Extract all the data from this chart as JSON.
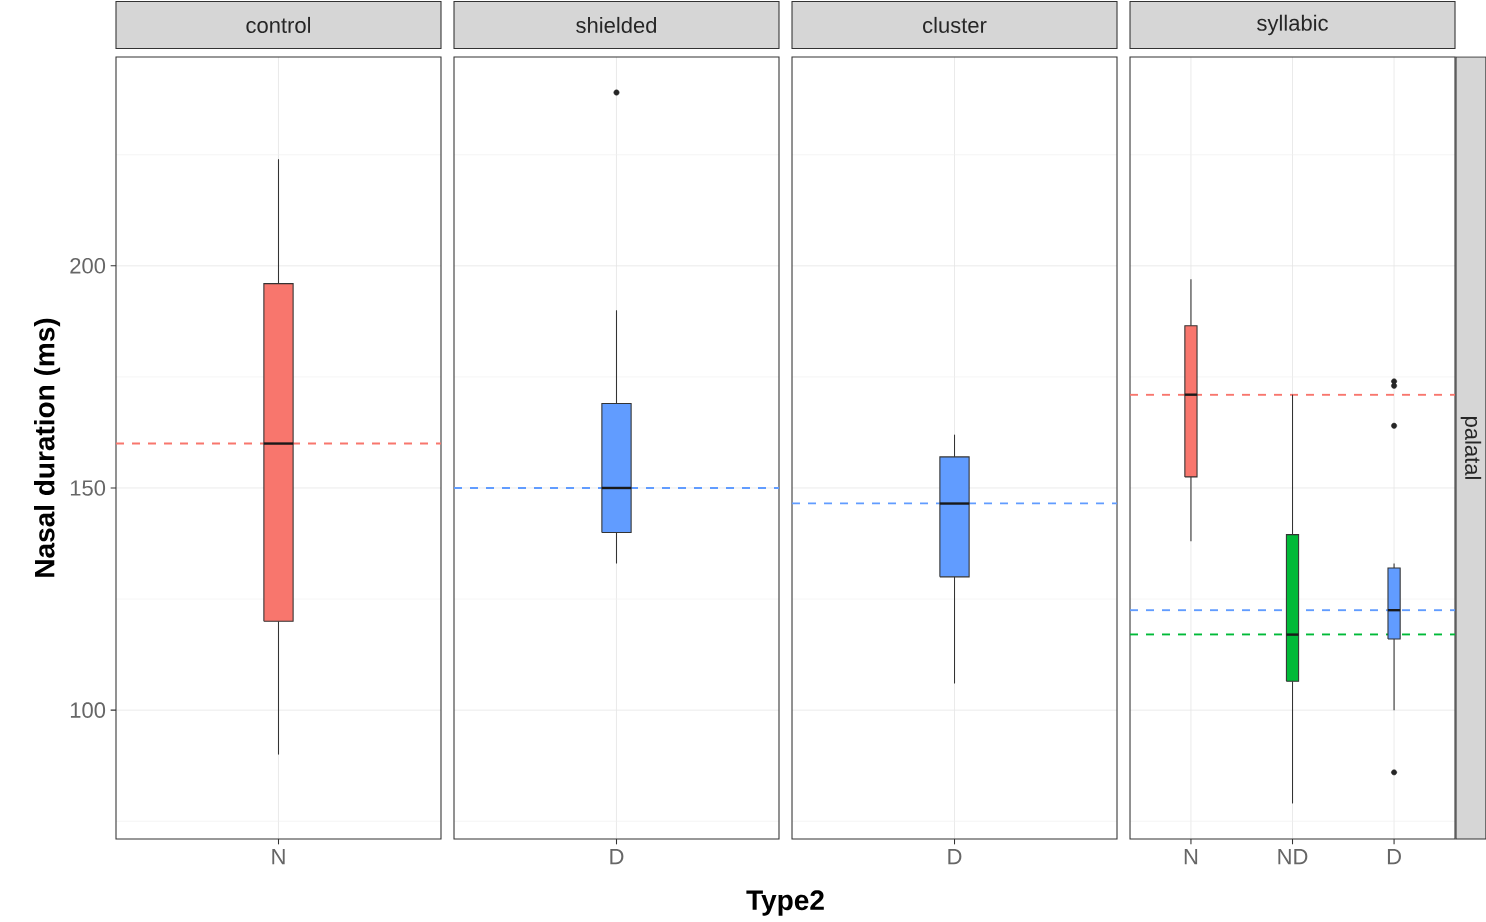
{
  "chart_data": [
    {
      "type": "box",
      "title": "control",
      "ylabel": "Nasal duration (ms)",
      "categories": [
        "N"
      ],
      "colors": [
        "#f8766d"
      ],
      "boxes": [
        {
          "low": 90,
          "q1": 120,
          "median": 160,
          "q3": 196,
          "high": 224
        }
      ],
      "ylim": [
        71,
        247
      ],
      "yticks": [
        100,
        150,
        200
      ],
      "grid": true,
      "ref_lines": [
        {
          "axis": "y",
          "value": 160,
          "color": "#f8766d",
          "line_style": "dashed"
        }
      ]
    },
    {
      "type": "box",
      "title": "shielded",
      "xlabel": "Type2",
      "categories": [
        "D"
      ],
      "colors": [
        "#619cff"
      ],
      "boxes": [
        {
          "low": 133,
          "q1": 140,
          "median": 150,
          "q3": 169,
          "high": 190,
          "outliers": [
            239
          ]
        }
      ],
      "ylim": [
        71,
        247
      ],
      "yticks": [
        100,
        150,
        200
      ],
      "grid": true,
      "tick_labels": "x",
      "ref_lines": [
        {
          "axis": "y",
          "value": 150,
          "color": "#619cff",
          "line_style": "dashed"
        }
      ]
    },
    {
      "type": "box",
      "title": "cluster",
      "categories": [
        "D"
      ],
      "colors": [
        "#619cff"
      ],
      "boxes": [
        {
          "low": 106,
          "q1": 130,
          "median": 146.5,
          "q3": 157,
          "high": 162
        }
      ],
      "ylim": [
        71,
        247
      ],
      "yticks": [
        100,
        150,
        200
      ],
      "grid": true,
      "tick_labels": "x",
      "ref_lines": [
        {
          "axis": "y",
          "value": 146.5,
          "color": "#619cff",
          "line_style": "dashed"
        }
      ]
    },
    {
      "type": "box",
      "title": "syllabic",
      "categories": [
        "N",
        "ND",
        "D"
      ],
      "colors": [
        "#f8766d",
        "#00ba38",
        "#619cff"
      ],
      "boxes": [
        {
          "low": 138,
          "q1": 152.5,
          "median": 171,
          "q3": 186.5,
          "high": 197
        },
        {
          "low": 79,
          "q1": 106.5,
          "median": 117,
          "q3": 139.5,
          "high": 171
        },
        {
          "low": 100,
          "q1": 116,
          "median": 122.5,
          "q3": 132,
          "high": 133,
          "outliers": [
            174,
            173,
            164,
            86
          ]
        }
      ],
      "ylim": [
        71,
        247
      ],
      "yticks": [
        100,
        150,
        200
      ],
      "grid": true,
      "tick_labels": "x",
      "annotations": [
        "palatal"
      ],
      "ref_lines": [
        {
          "axis": "y",
          "value": 171,
          "color": "#f8766d",
          "line_style": "dashed"
        },
        {
          "axis": "y",
          "value": 122.5,
          "color": "#619cff",
          "line_style": "dashed"
        },
        {
          "axis": "y",
          "value": 117,
          "color": "#00ba38",
          "line_style": "dashed"
        }
      ]
    }
  ]
}
